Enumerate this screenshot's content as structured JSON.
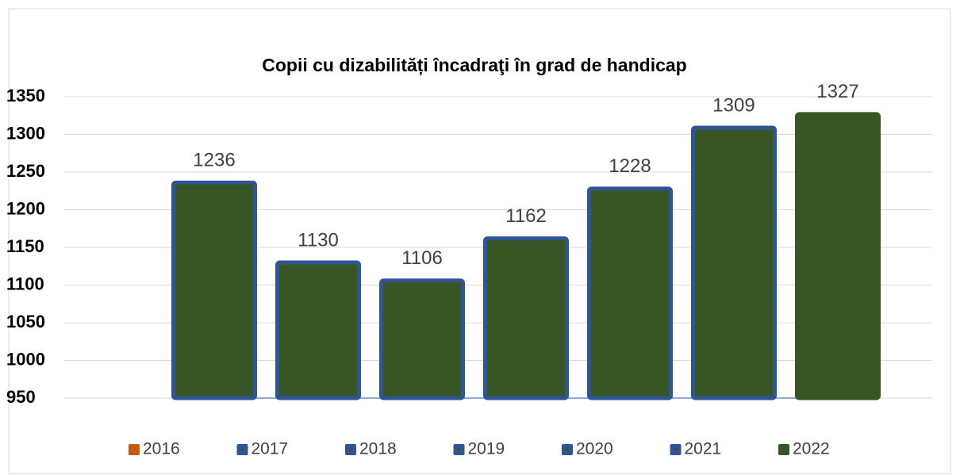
{
  "chart_data": {
    "type": "bar",
    "title": "Copii cu dizabilități încadraţi în grad de handicap",
    "series": [
      {
        "name": "2016",
        "color": "#375623",
        "edgecolor": "#2f5597",
        "legend_color": "#c55a11",
        "values": [
          1236
        ]
      },
      {
        "name": "2017",
        "color": "#375623",
        "edgecolor": "#2f5597",
        "legend_color": "#2f5597",
        "values": [
          1130
        ]
      },
      {
        "name": "2018",
        "color": "#375623",
        "edgecolor": "#2f5597",
        "legend_color": "#2f5597",
        "values": [
          1106
        ]
      },
      {
        "name": "2019",
        "color": "#375623",
        "edgecolor": "#2f5597",
        "legend_color": "#2f5597",
        "values": [
          1162
        ]
      },
      {
        "name": "2020",
        "color": "#375623",
        "edgecolor": "#2f5597",
        "legend_color": "#2f5597",
        "values": [
          1228
        ]
      },
      {
        "name": "2021",
        "color": "#375623",
        "edgecolor": "#2f5597",
        "legend_color": "#2f5597",
        "values": [
          1309
        ]
      },
      {
        "name": "2022",
        "color": "#375623",
        "edgecolor": "#375623",
        "legend_color": "#375623",
        "values": [
          1327
        ]
      }
    ],
    "ylim": [
      950,
      1350
    ],
    "yticks": [
      950,
      1000,
      1050,
      1100,
      1150,
      1200,
      1250,
      1300,
      1350
    ],
    "grid": true,
    "legend": "bottom"
  }
}
